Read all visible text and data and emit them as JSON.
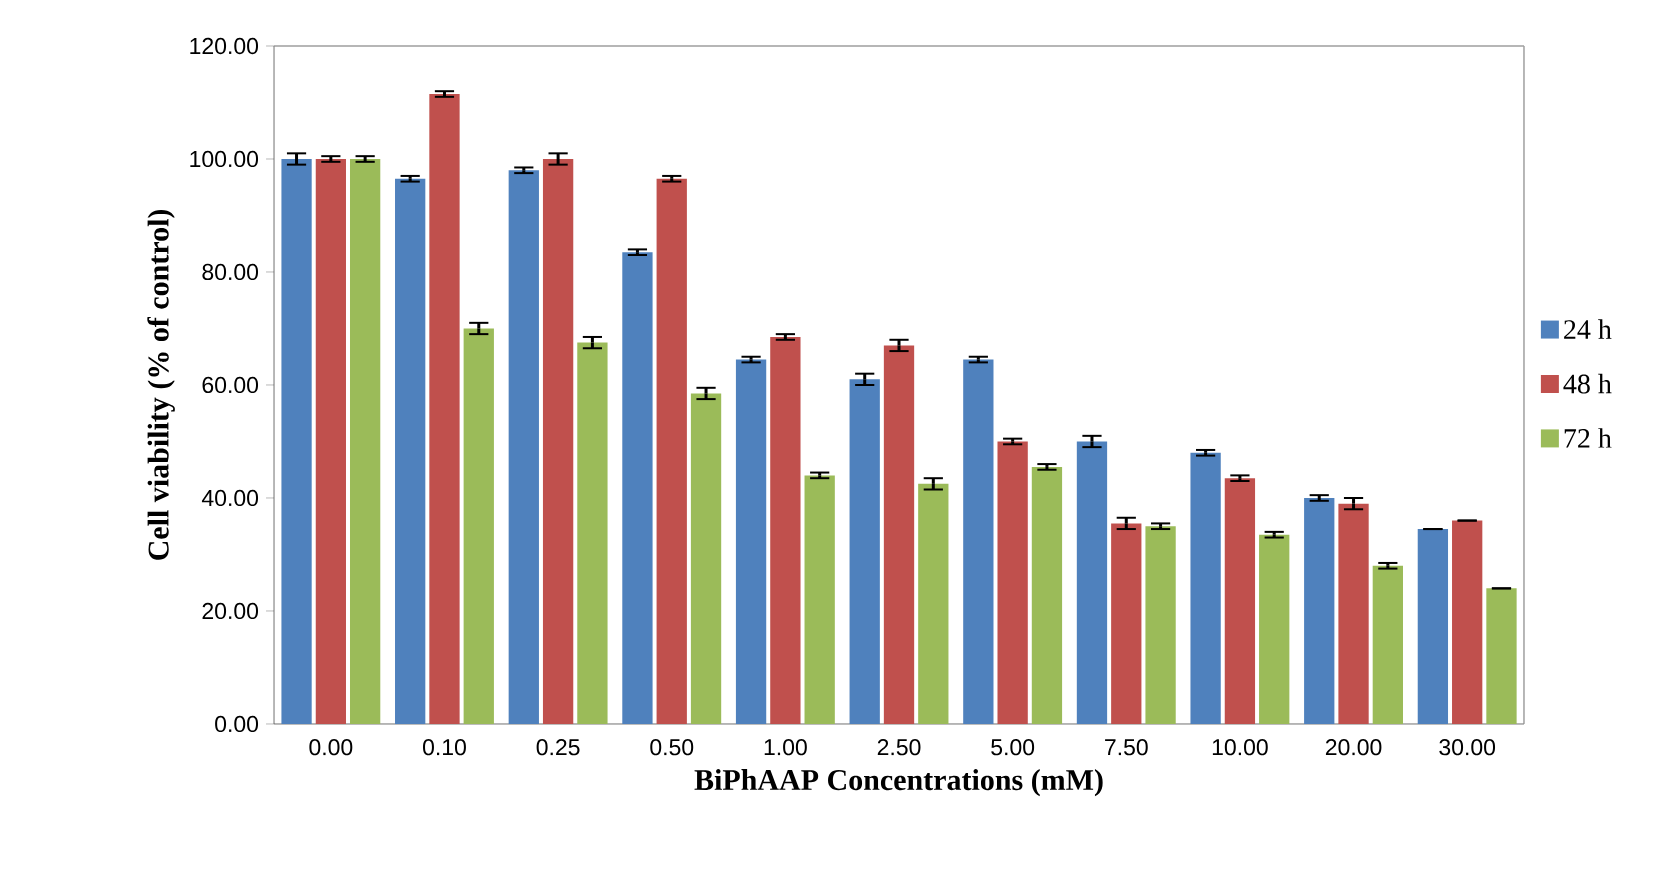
{
  "chart_data": {
    "type": "bar",
    "xlabel": "BiPhAAP Concentrations  (mM)",
    "ylabel": "Cell viability  (% of control)",
    "categories": [
      "0.00",
      "0.10",
      "0.25",
      "0.50",
      "1.00",
      "2.50",
      "5.00",
      "7.50",
      "10.00",
      "20.00",
      "30.00"
    ],
    "series": [
      {
        "name": "24 h",
        "color": "#4f81bd",
        "values": [
          100,
          96.5,
          98,
          83.5,
          64.5,
          61,
          64.5,
          50,
          48,
          40,
          34.5
        ],
        "errors": [
          1,
          0.5,
          0.5,
          0.5,
          0.5,
          1,
          0.5,
          1,
          0.5,
          0.5,
          null
        ]
      },
      {
        "name": "48 h",
        "color": "#c0504d",
        "values": [
          100,
          111.5,
          100,
          96.5,
          68.5,
          67,
          50,
          35.5,
          43.5,
          39,
          36
        ],
        "errors": [
          0.5,
          0.5,
          1,
          0.5,
          0.5,
          1,
          0.5,
          1,
          0.5,
          1,
          null
        ]
      },
      {
        "name": "72 h",
        "color": "#9bbb59",
        "values": [
          100,
          70,
          67.5,
          58.5,
          44,
          42.5,
          45.5,
          35,
          33.5,
          28,
          24
        ],
        "errors": [
          0.5,
          1,
          1,
          1,
          0.5,
          1,
          0.5,
          0.5,
          0.5,
          0.5,
          null
        ]
      }
    ],
    "ylim": [
      0,
      120
    ],
    "yticks": [
      {
        "value": 0,
        "label": "0.00"
      },
      {
        "value": 20,
        "label": "20.00"
      },
      {
        "value": 40,
        "label": "40.00"
      },
      {
        "value": 60,
        "label": "60.00"
      },
      {
        "value": 80,
        "label": "80.00"
      },
      {
        "value": 100,
        "label": "100.00"
      },
      {
        "value": 120,
        "label": "120.00"
      }
    ],
    "grid": false,
    "legend": "right"
  }
}
